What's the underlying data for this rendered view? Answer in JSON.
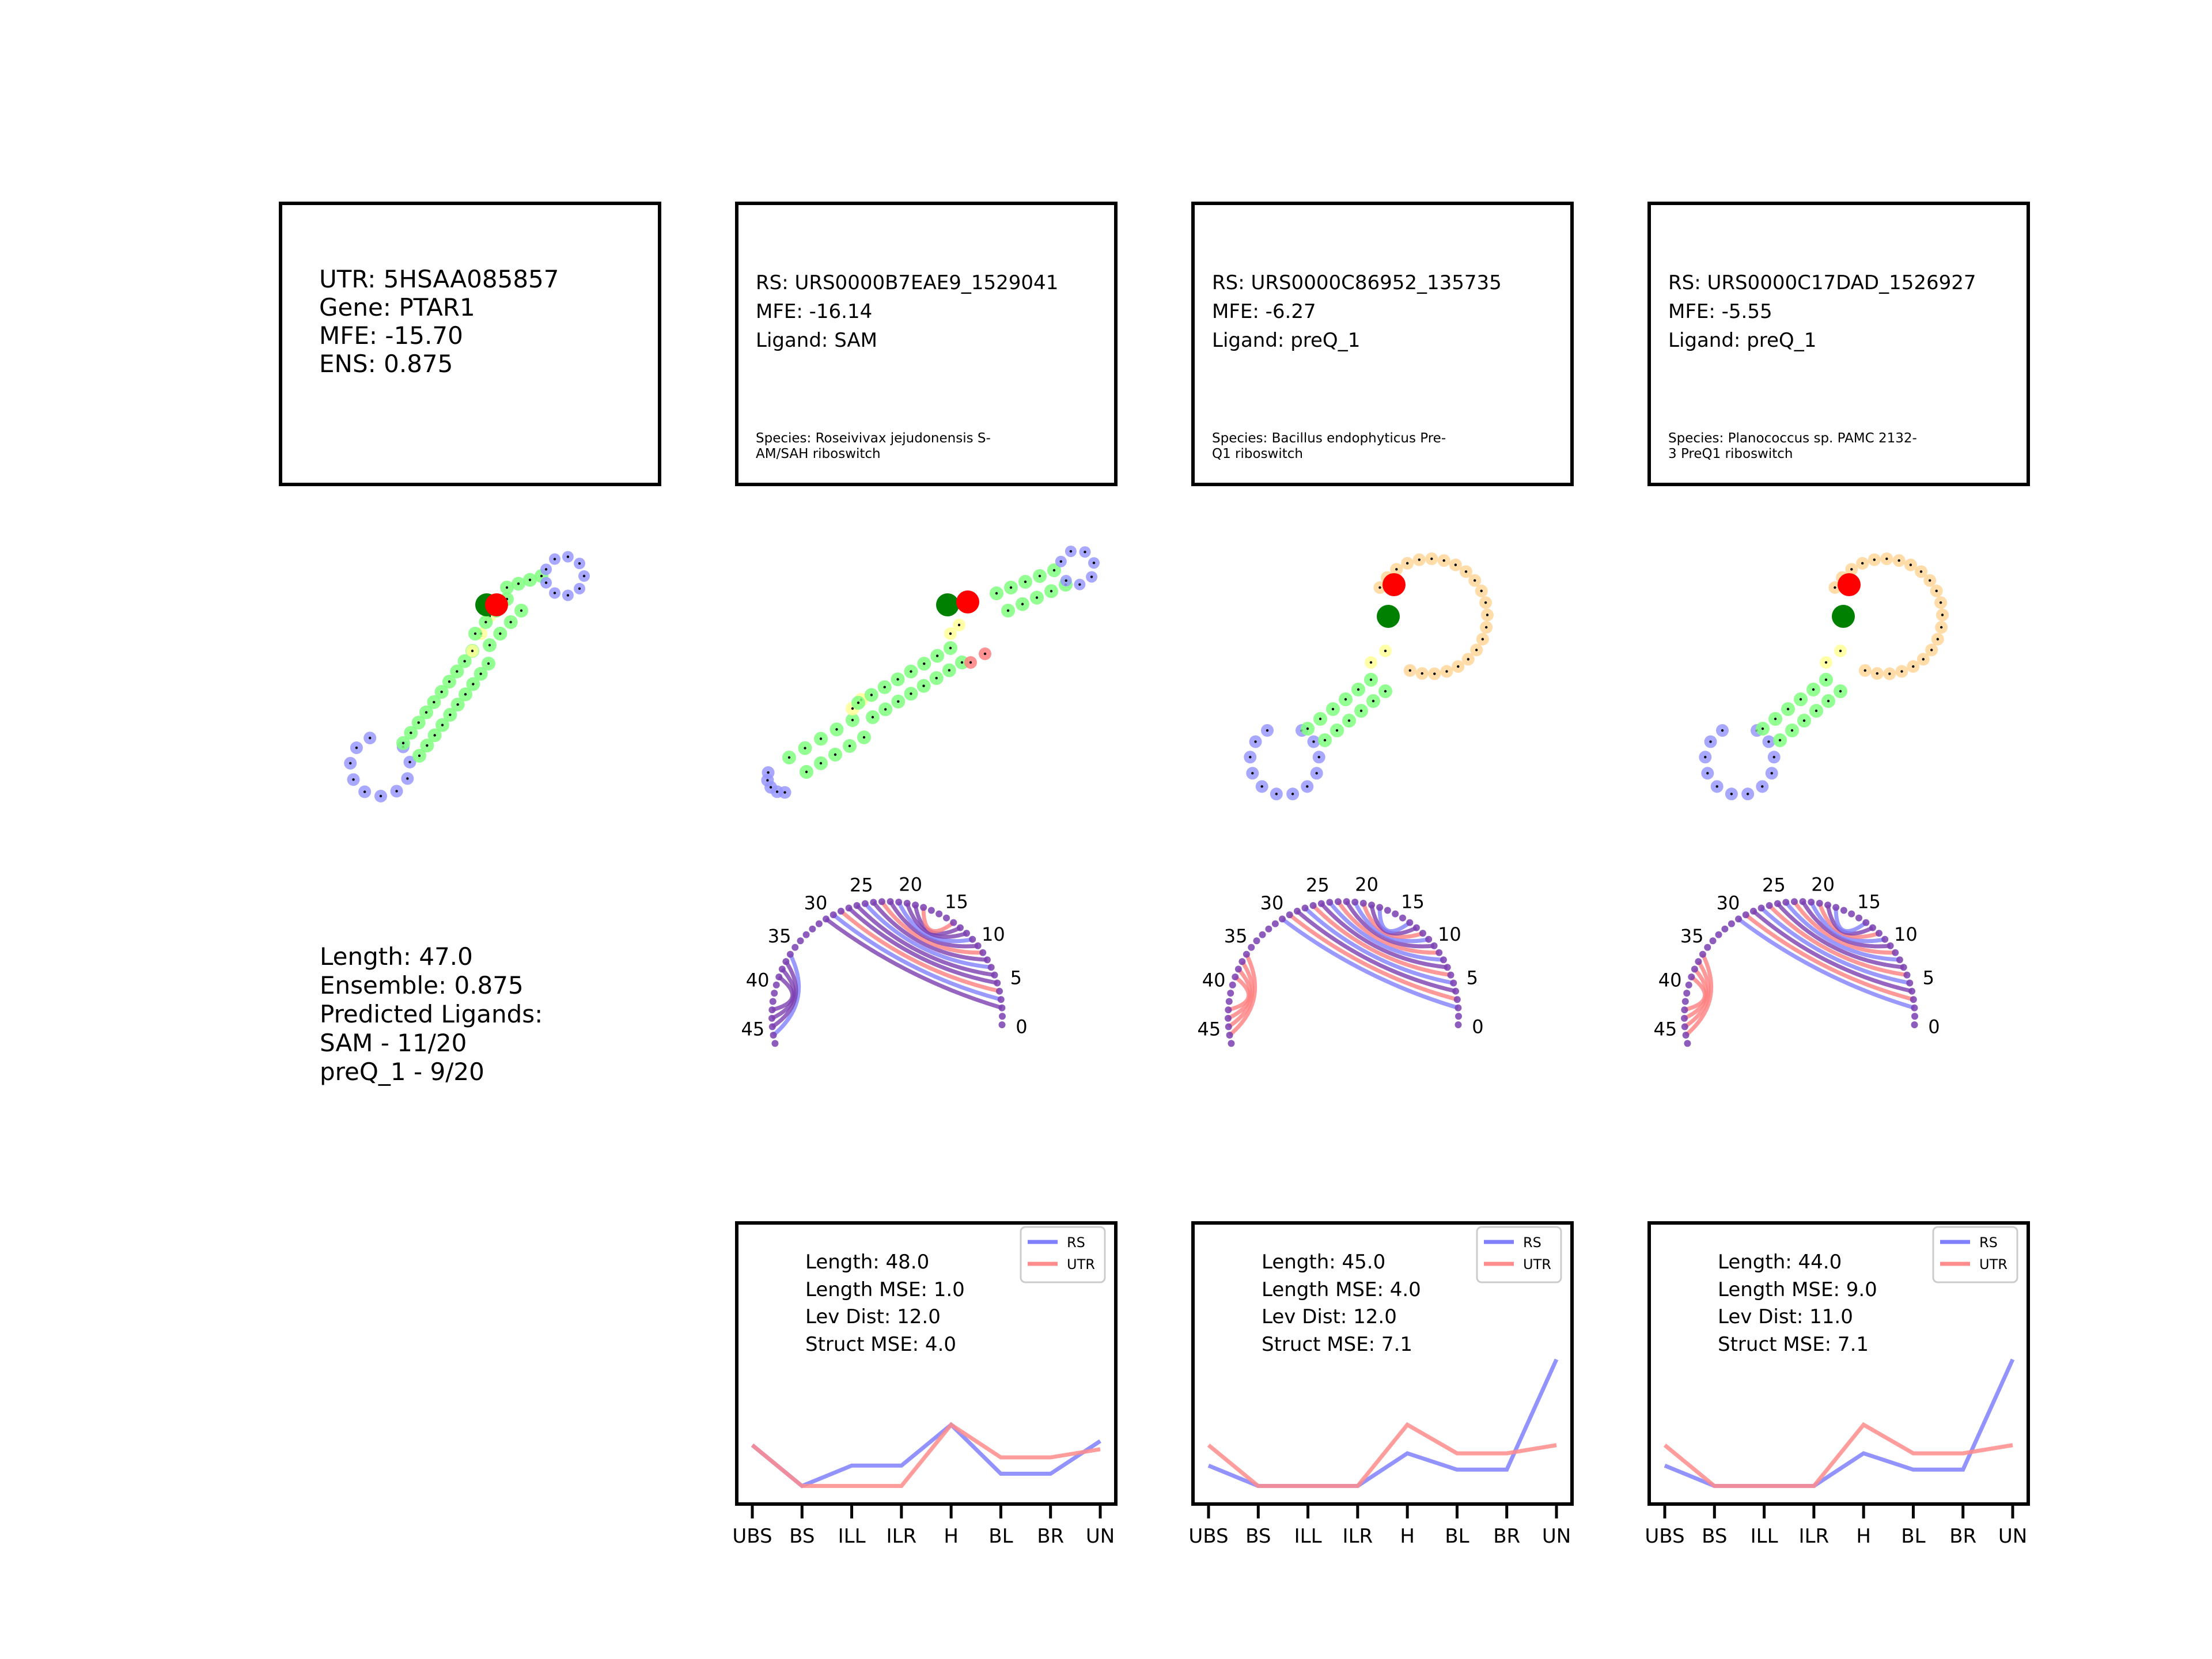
{
  "utr_panel": {
    "lines": [
      "UTR: 5HSAA085857",
      "Gene: PTAR1",
      "MFE: -15.70",
      "ENS: 0.875"
    ],
    "summary": [
      "Length: 47.0",
      "Ensemble: 0.875",
      "Predicted Ligands:",
      "SAM - 11/20",
      "preQ_1 - 9/20"
    ]
  },
  "riboswitches": [
    {
      "info": [
        "RS: URS0000B7EAE9_1529041",
        "MFE: -16.14",
        "Ligand: SAM"
      ],
      "species": [
        "Species: Roseivivax jejudonensis S-",
        "AM/SAH riboswitch"
      ],
      "stats": [
        "Length: 48.0",
        "Length MSE: 1.0",
        "Lev Dist: 12.0",
        "Struct MSE: 4.0"
      ]
    },
    {
      "info": [
        "RS: URS0000C86952_135735",
        "MFE: -6.27",
        "Ligand: preQ_1"
      ],
      "species": [
        "Species: Bacillus endophyticus Pre-",
        "Q1 riboswitch"
      ],
      "stats": [
        "Length: 45.0",
        "Length MSE: 4.0",
        "Lev Dist: 12.0",
        "Struct MSE: 7.1"
      ]
    },
    {
      "info": [
        "RS: URS0000C17DAD_1526927",
        "MFE: -5.55",
        "Ligand: preQ_1"
      ],
      "species": [
        "Species: Planococcus sp. PAMC 2132-",
        "3 PreQ1 riboswitch"
      ],
      "stats": [
        "Length: 44.0",
        "Length MSE: 9.0",
        "Lev Dist: 11.0",
        "Struct MSE: 7.1"
      ]
    }
  ],
  "arc_tick_labels": [
    "0",
    "5",
    "10",
    "15",
    "20",
    "25",
    "30",
    "35",
    "40",
    "45"
  ],
  "chart_data": [
    {
      "type": "line",
      "categories": [
        "UBS",
        "BS",
        "ILL",
        "ILR",
        "H",
        "BL",
        "BR",
        "UN"
      ],
      "series": [
        {
          "name": "RS",
          "color": "#8080ff",
          "values": [
            0.14,
            0.04,
            0.09,
            0.09,
            0.19,
            0.07,
            0.07,
            0.15
          ]
        },
        {
          "name": "UTR",
          "color": "#ff8c8c",
          "values": [
            0.14,
            0.04,
            0.04,
            0.04,
            0.19,
            0.11,
            0.11,
            0.13
          ]
        }
      ],
      "ylim": [
        0,
        0.68
      ],
      "legend": "top-right"
    },
    {
      "type": "line",
      "categories": [
        "UBS",
        "BS",
        "ILL",
        "ILR",
        "H",
        "BL",
        "BR",
        "UN"
      ],
      "series": [
        {
          "name": "RS",
          "color": "#8080ff",
          "values": [
            0.09,
            0.04,
            0.04,
            0.04,
            0.12,
            0.08,
            0.08,
            0.35
          ]
        },
        {
          "name": "UTR",
          "color": "#ff8c8c",
          "values": [
            0.14,
            0.04,
            0.04,
            0.04,
            0.19,
            0.12,
            0.12,
            0.14
          ]
        }
      ],
      "ylim": [
        0,
        0.68
      ],
      "legend": "top-right"
    },
    {
      "type": "line",
      "categories": [
        "UBS",
        "BS",
        "ILL",
        "ILR",
        "H",
        "BL",
        "BR",
        "UN"
      ],
      "series": [
        {
          "name": "RS",
          "color": "#8080ff",
          "values": [
            0.09,
            0.04,
            0.04,
            0.04,
            0.12,
            0.08,
            0.08,
            0.35
          ]
        },
        {
          "name": "UTR",
          "color": "#ff8c8c",
          "values": [
            0.14,
            0.04,
            0.04,
            0.04,
            0.19,
            0.12,
            0.12,
            0.14
          ]
        }
      ],
      "ylim": [
        0,
        0.68
      ],
      "legend": "top-right"
    }
  ],
  "colors": {
    "stem": "#80ff80",
    "hairpin": "#9999ff",
    "interior": "#ffff99",
    "hairpin_loop": "#ffd699",
    "pair_red": "#ff8080",
    "marker_green": "#008000",
    "marker_red": "#ff0000",
    "arc_rs": "#8080ff",
    "arc_utr": "#ff8080",
    "arc_both": "#7a3fb0"
  }
}
